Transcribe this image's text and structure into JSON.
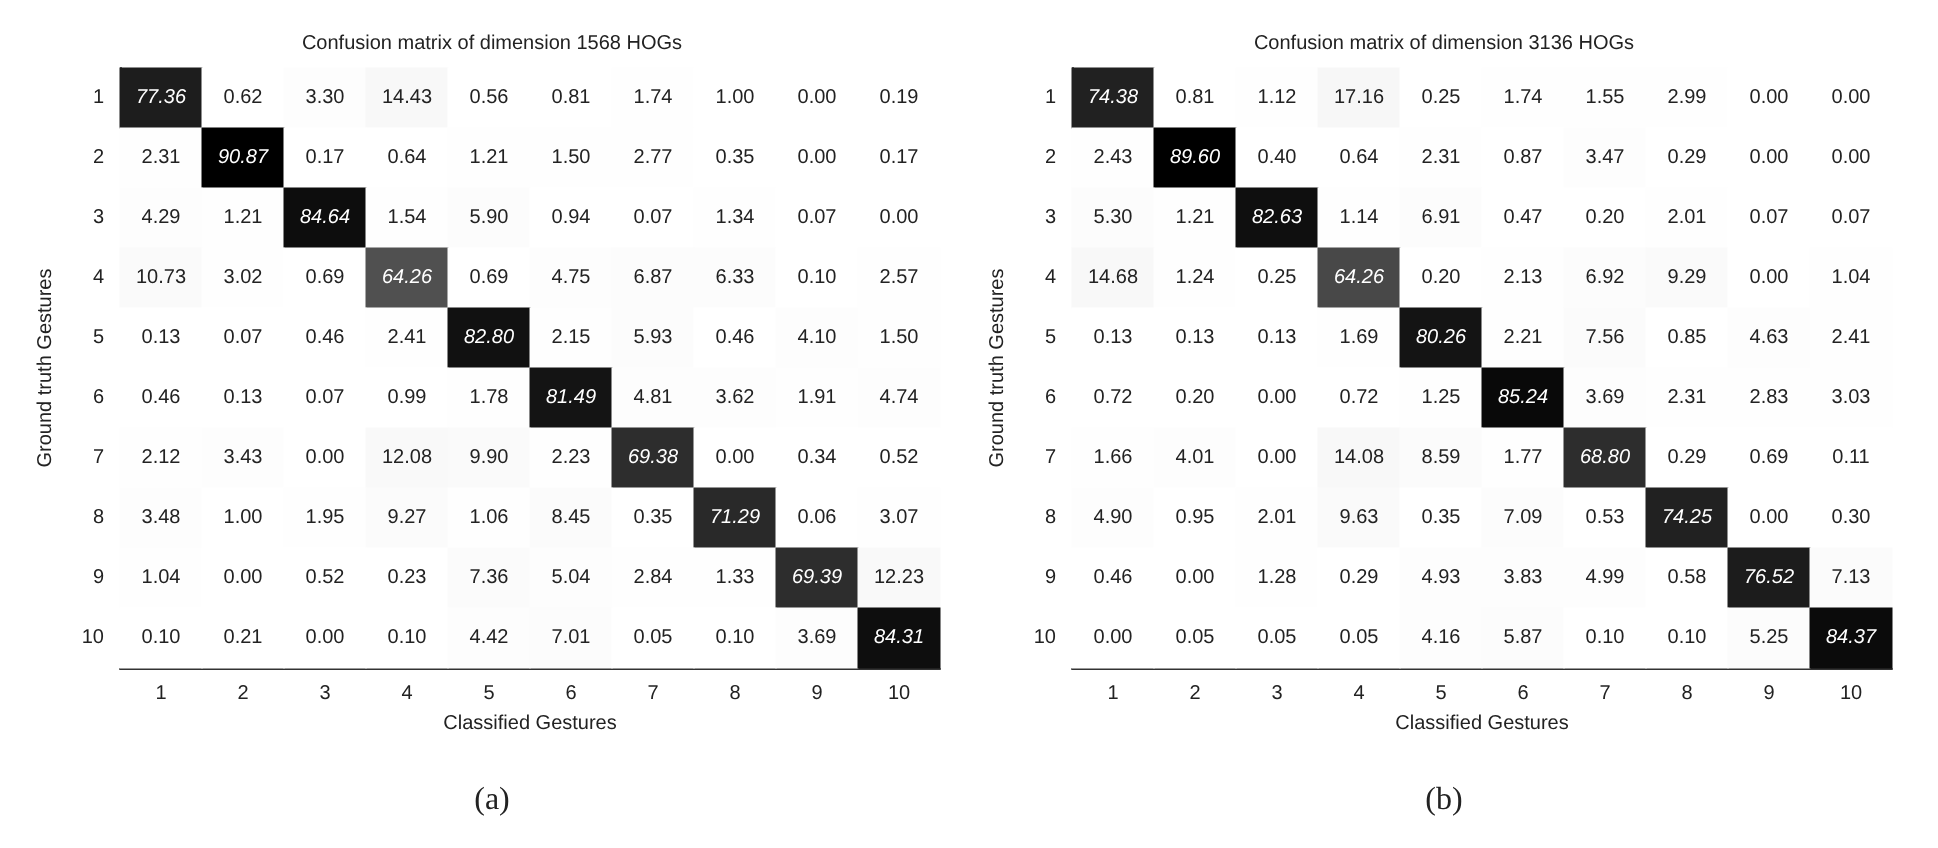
{
  "chart_data": [
    {
      "type": "heatmap",
      "title": "Confusion matrix of dimension 1568 HOGs",
      "xlabel": "Classified Gestures",
      "ylabel": "Ground truth Gestures",
      "categories": [
        "1",
        "2",
        "3",
        "4",
        "5",
        "6",
        "7",
        "8",
        "9",
        "10"
      ],
      "y_categories": [
        "1",
        "2",
        "3",
        "4",
        "5",
        "6",
        "7",
        "8",
        "9",
        "10"
      ],
      "data_labels": true,
      "annotations": [
        "(a)"
      ],
      "cell_labels": [
        [
          "77.36",
          "0.62",
          "3.30",
          "14.43",
          "0.56",
          "0.81",
          "1.74",
          "1.00",
          "0.00",
          "0.19"
        ],
        [
          "2.31",
          "90.87",
          "0.17",
          "0.64",
          "1.21",
          "1.50",
          "2.77",
          "0.35",
          "0.00",
          "0.17"
        ],
        [
          "4.29",
          "1.21",
          "84.64",
          "1.54",
          "5.90",
          "0.94",
          "0.07",
          "1.34",
          "0.07",
          "0.00"
        ],
        [
          "10.73",
          "3.02",
          "0.69",
          "64.26",
          "0.69",
          "4.75",
          "6.87",
          "6.33",
          "0.10",
          "2.57"
        ],
        [
          "0.13",
          "0.07",
          "0.46",
          "2.41",
          "82.80",
          "2.15",
          "5.93",
          "0.46",
          "4.10",
          "1.50"
        ],
        [
          "0.46",
          "0.13",
          "0.07",
          "0.99",
          "1.78",
          "81.49",
          "4.81",
          "3.62",
          "1.91",
          "4.74"
        ],
        [
          "2.12",
          "3.43",
          "0.00",
          "12.08",
          "9.90",
          "2.23",
          "69.38",
          "0.00",
          "0.34",
          "0.52"
        ],
        [
          "3.48",
          "1.00",
          "1.95",
          "9.27",
          "1.06",
          "8.45",
          "0.35",
          "71.29",
          "0.06",
          "3.07"
        ],
        [
          "1.04",
          "0.00",
          "0.52",
          "0.23",
          "7.36",
          "5.04",
          "2.84",
          "1.33",
          "69.39",
          "12.23"
        ],
        [
          "0.10",
          "0.21",
          "0.00",
          "0.10",
          "4.42",
          "7.01",
          "0.05",
          "0.10",
          "3.69",
          "84.31"
        ]
      ],
      "cells": [
        [
          77.36,
          0.62,
          3.3,
          14.43,
          0.56,
          0.81,
          1.74,
          1.0,
          0.0,
          0.19
        ],
        [
          2.31,
          90.87,
          0.17,
          0.64,
          1.21,
          1.5,
          2.77,
          0.35,
          0.0,
          0.17
        ],
        [
          4.29,
          1.21,
          84.64,
          1.54,
          5.9,
          0.94,
          0.07,
          1.34,
          0.07,
          0.0
        ],
        [
          10.73,
          3.02,
          0.69,
          64.26,
          0.69,
          4.75,
          6.87,
          6.33,
          0.1,
          2.57
        ],
        [
          0.13,
          0.07,
          0.46,
          2.41,
          82.8,
          2.15,
          5.93,
          0.46,
          4.1,
          1.5
        ],
        [
          0.46,
          0.13,
          0.07,
          0.99,
          1.78,
          81.49,
          4.81,
          3.62,
          1.91,
          4.74
        ],
        [
          2.12,
          3.43,
          0.0,
          12.08,
          9.9,
          2.23,
          69.38,
          0.0,
          0.34,
          0.52
        ],
        [
          3.48,
          1.0,
          1.95,
          9.27,
          1.06,
          8.45,
          0.35,
          71.29,
          0.06,
          3.07
        ],
        [
          1.04,
          0.0,
          0.52,
          0.23,
          7.36,
          5.04,
          2.84,
          1.33,
          69.39,
          12.23
        ],
        [
          0.1,
          0.21,
          0.0,
          0.1,
          4.42,
          7.01,
          0.05,
          0.1,
          3.69,
          84.31
        ]
      ]
    },
    {
      "type": "heatmap",
      "title": "Confusion matrix of dimension 3136 HOGs",
      "xlabel": "Classified Gestures",
      "ylabel": "Ground truth Gestures",
      "categories": [
        "1",
        "2",
        "3",
        "4",
        "5",
        "6",
        "7",
        "8",
        "9",
        "10"
      ],
      "y_categories": [
        "1",
        "2",
        "3",
        "4",
        "5",
        "6",
        "7",
        "8",
        "9",
        "10"
      ],
      "data_labels": true,
      "annotations": [
        "(b)"
      ],
      "cell_labels": [
        [
          "74.38",
          "0.81",
          "1.12",
          "17.16",
          "0.25",
          "1.74",
          "1.55",
          "2.99",
          "0.00",
          "0.00"
        ],
        [
          "2.43",
          "89.60",
          "0.40",
          "0.64",
          "2.31",
          "0.87",
          "3.47",
          "0.29",
          "0.00",
          "0.00"
        ],
        [
          "5.30",
          "1.21",
          "82.63",
          "1.14",
          "6.91",
          "0.47",
          "0.20",
          "2.01",
          "0.07",
          "0.07"
        ],
        [
          "14.68",
          "1.24",
          "0.25",
          "64.26",
          "0.20",
          "2.13",
          "6.92",
          "9.29",
          "0.00",
          "1.04"
        ],
        [
          "0.13",
          "0.13",
          "0.13",
          "1.69",
          "80.26",
          "2.21",
          "7.56",
          "0.85",
          "4.63",
          "2.41"
        ],
        [
          "0.72",
          "0.20",
          "0.00",
          "0.72",
          "1.25",
          "85.24",
          "3.69",
          "2.31",
          "2.83",
          "3.03"
        ],
        [
          "1.66",
          "4.01",
          "0.00",
          "14.08",
          "8.59",
          "1.77",
          "68.80",
          "0.29",
          "0.69",
          "0.11"
        ],
        [
          "4.90",
          "0.95",
          "2.01",
          "9.63",
          "0.35",
          "7.09",
          "0.53",
          "74.25",
          "0.00",
          "0.30"
        ],
        [
          "0.46",
          "0.00",
          "1.28",
          "0.29",
          "4.93",
          "3.83",
          "4.99",
          "0.58",
          "76.52",
          "7.13"
        ],
        [
          "0.00",
          "0.05",
          "0.05",
          "0.05",
          "4.16",
          "5.87",
          "0.10",
          "0.10",
          "5.25",
          "84.37"
        ]
      ],
      "cells": [
        [
          74.38,
          0.81,
          1.12,
          17.16,
          0.25,
          1.74,
          1.55,
          2.99,
          0.0,
          0.0
        ],
        [
          2.43,
          89.6,
          0.4,
          0.64,
          2.31,
          0.87,
          3.47,
          0.29,
          0.0,
          0.0
        ],
        [
          5.3,
          1.21,
          82.63,
          1.14,
          6.91,
          0.47,
          0.2,
          2.01,
          0.07,
          0.07
        ],
        [
          14.68,
          1.24,
          0.25,
          64.26,
          0.2,
          2.13,
          6.92,
          9.29,
          0.0,
          1.04
        ],
        [
          0.13,
          0.13,
          0.13,
          1.69,
          80.26,
          2.21,
          7.56,
          0.85,
          4.63,
          2.41
        ],
        [
          0.72,
          0.2,
          0.0,
          0.72,
          1.25,
          85.24,
          3.69,
          2.31,
          2.83,
          3.03
        ],
        [
          1.66,
          4.01,
          0.0,
          14.08,
          8.59,
          1.77,
          68.8,
          0.29,
          0.69,
          0.11
        ],
        [
          4.9,
          0.95,
          2.01,
          9.63,
          0.35,
          7.09,
          0.53,
          74.25,
          0.0,
          0.3
        ],
        [
          0.46,
          0.0,
          1.28,
          0.29,
          4.93,
          3.83,
          4.99,
          0.58,
          76.52,
          7.13
        ],
        [
          0.0,
          0.05,
          0.05,
          0.05,
          4.16,
          5.87,
          0.1,
          0.1,
          5.25,
          84.37
        ]
      ]
    }
  ]
}
